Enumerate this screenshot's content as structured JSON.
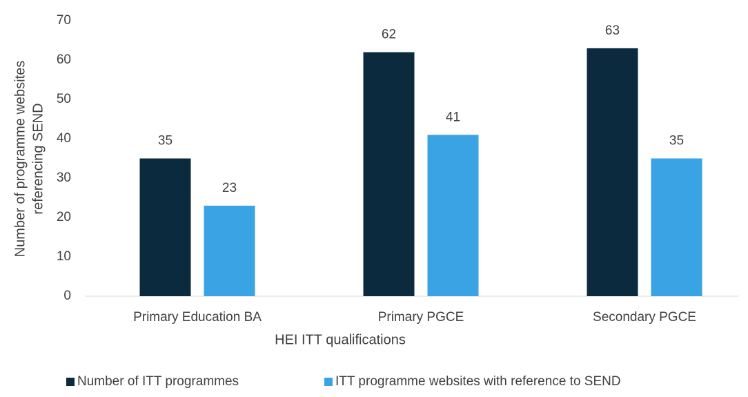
{
  "chart_data": {
    "type": "bar",
    "xlabel": "HEI ITT qualifications",
    "ylabel": [
      "Number of programme websites",
      "referencing SEND"
    ],
    "categories": [
      "Primary Education BA",
      "Primary PGCE",
      "Secondary PGCE"
    ],
    "series": [
      {
        "name": "Number of ITT programmes",
        "color": "#0c2a3e",
        "values": [
          35,
          62,
          63
        ]
      },
      {
        "name": "ITT programme websites with reference to SEND",
        "color": "#3aa3e3",
        "values": [
          23,
          41,
          35
        ]
      }
    ],
    "ylim": [
      0,
      70
    ],
    "yticks": [
      0,
      10,
      20,
      30,
      40,
      50,
      60,
      70
    ],
    "grid": false,
    "legend": "bottom"
  }
}
